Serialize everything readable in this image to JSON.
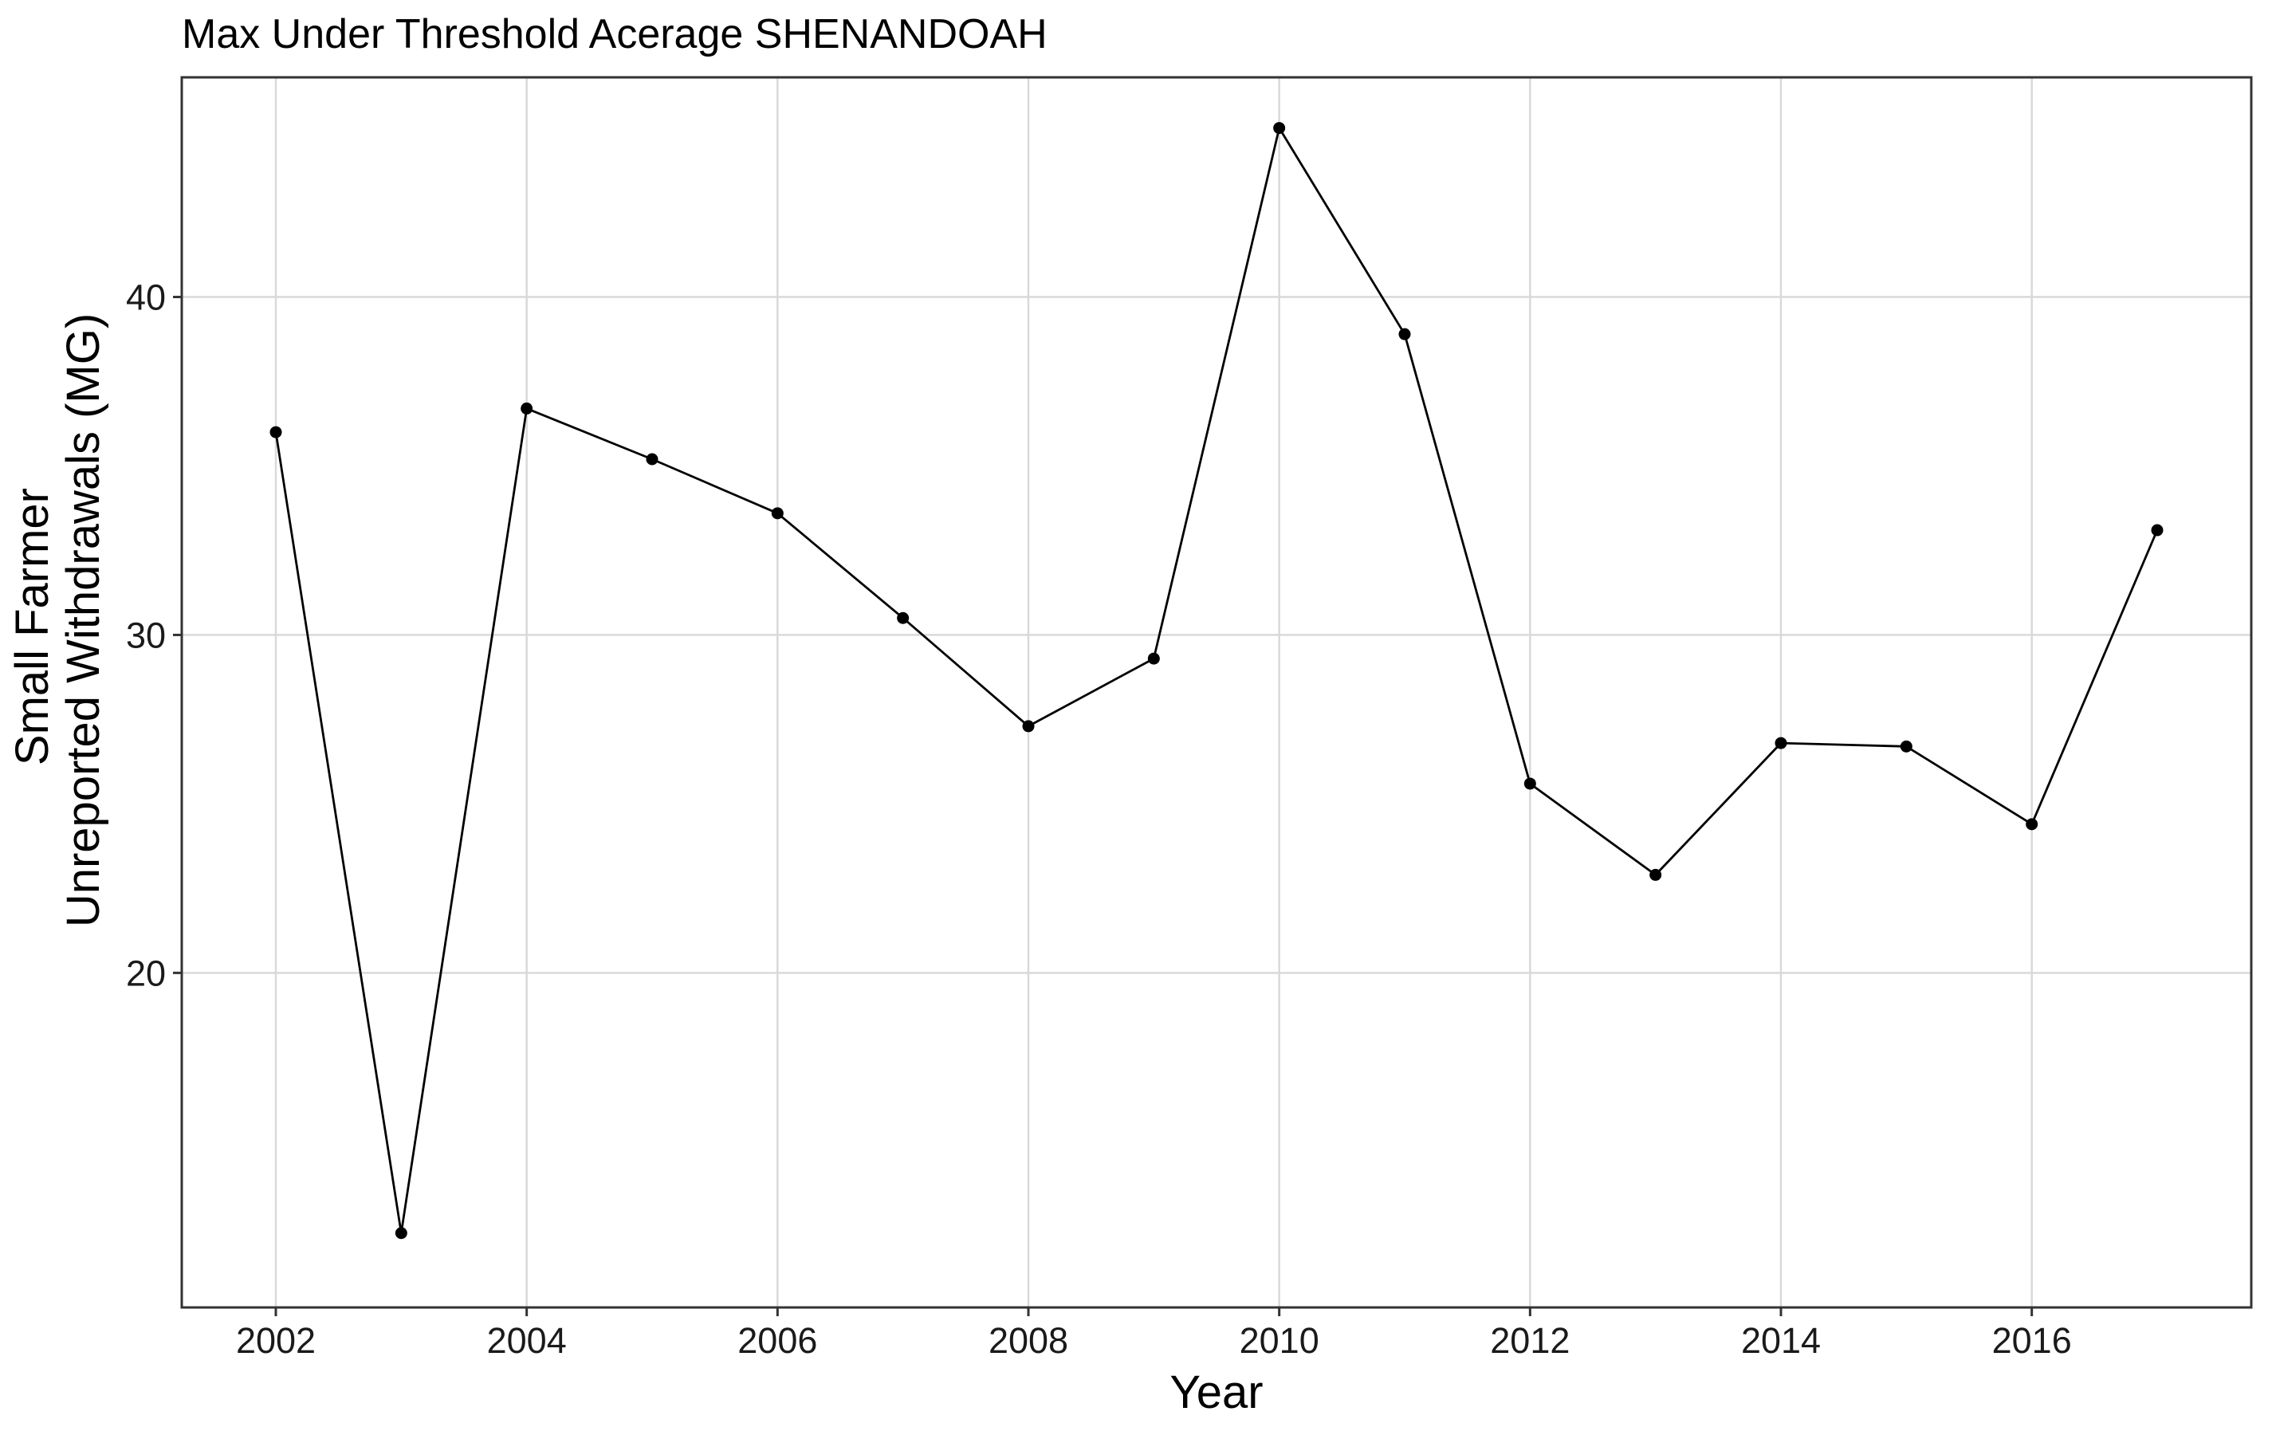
{
  "chart_data": {
    "type": "line",
    "title": "Max Under Threshold Acerage SHENANDOAH",
    "xlabel": "Year",
    "ylabel_lines": [
      "Small Farmer",
      "Unreported Withdrawals (MG)"
    ],
    "x": [
      2002,
      2003,
      2004,
      2005,
      2006,
      2007,
      2008,
      2009,
      2010,
      2011,
      2012,
      2013,
      2014,
      2015,
      2016,
      2017
    ],
    "series": [
      {
        "values": [
          36.0,
          12.3,
          36.7,
          35.2,
          33.6,
          30.5,
          27.3,
          29.3,
          45.0,
          38.9,
          25.6,
          22.9,
          26.8,
          26.7,
          24.4,
          33.1
        ]
      }
    ],
    "xticks": [
      2002,
      2004,
      2006,
      2008,
      2010,
      2012,
      2014,
      2016
    ],
    "xtick_labels": [
      "2002",
      "2004",
      "2006",
      "2008",
      "2010",
      "2012",
      "2014",
      "2016"
    ],
    "yticks": [
      20,
      30,
      40
    ],
    "ytick_labels": [
      "20",
      "30",
      "40"
    ],
    "xlim": [
      2001.25,
      2017.75
    ],
    "ylim": [
      10.1,
      46.5
    ],
    "grid": true,
    "legend": "none",
    "colors": {
      "line": "#000000",
      "point": "#000000",
      "grid": "#d9d9d9",
      "panel_border": "#333333"
    }
  }
}
